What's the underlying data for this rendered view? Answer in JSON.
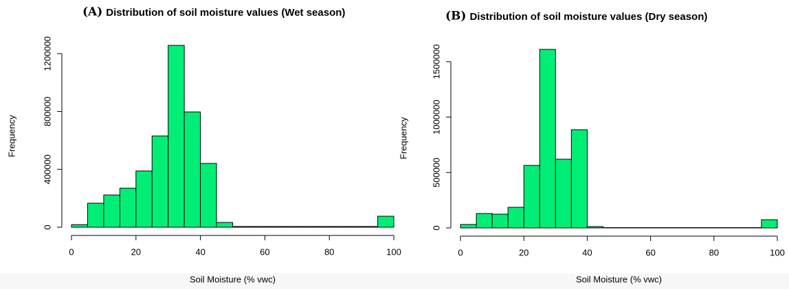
{
  "chart_data": [
    {
      "type": "histogram",
      "panel_label": "(A)",
      "title": "Distribution of soil moisture values (Wet season)",
      "x_label": "Soil Moisture (% vwc)",
      "y_label": "Frequency",
      "color": "#00ee76",
      "bins": [
        0,
        5,
        10,
        15,
        20,
        25,
        30,
        35,
        40,
        45,
        50,
        55,
        60,
        65,
        70,
        75,
        80,
        85,
        90,
        95,
        100
      ],
      "counts": [
        18000,
        166000,
        223000,
        270000,
        389000,
        631000,
        1257000,
        797000,
        441000,
        33000,
        5000,
        5000,
        5000,
        5000,
        5000,
        5000,
        5000,
        5000,
        5000,
        76000
      ],
      "xlim": [
        0,
        100
      ],
      "xticks": [
        0,
        20,
        40,
        60,
        80,
        100
      ],
      "ylim": [
        0,
        1260000
      ],
      "yticks": [
        0,
        400000,
        800000,
        1200000
      ]
    },
    {
      "type": "histogram",
      "panel_label": "(B)",
      "title": "Distribution of soil moisture values (Dry season)",
      "x_label": "Soil Moisture (% vwc)",
      "y_label": "Frequency",
      "color": "#00ee76",
      "bins": [
        0,
        5,
        10,
        15,
        20,
        25,
        30,
        35,
        40,
        45,
        50,
        55,
        60,
        65,
        70,
        75,
        80,
        85,
        90,
        95,
        100
      ],
      "counts": [
        31000,
        130000,
        124000,
        186000,
        564000,
        1611000,
        620000,
        886000,
        12000,
        3000,
        3000,
        3000,
        3000,
        3000,
        3000,
        3000,
        3000,
        3000,
        3000,
        74000
      ],
      "xlim": [
        0,
        100
      ],
      "xticks": [
        0,
        20,
        40,
        60,
        80,
        100
      ],
      "ylim": [
        0,
        1620000
      ],
      "yticks": [
        0,
        500000,
        1000000,
        1500000
      ]
    }
  ]
}
